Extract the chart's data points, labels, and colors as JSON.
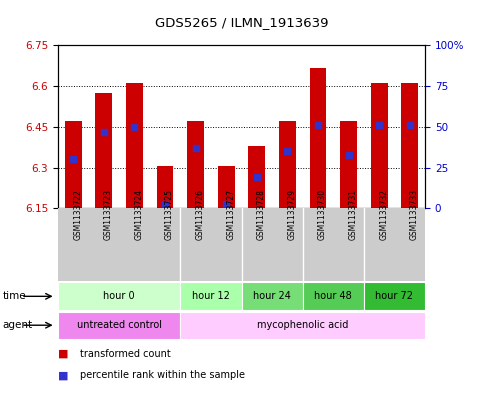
{
  "title": "GDS5265 / ILMN_1913639",
  "samples": [
    "GSM1133722",
    "GSM1133723",
    "GSM1133724",
    "GSM1133725",
    "GSM1133726",
    "GSM1133727",
    "GSM1133728",
    "GSM1133729",
    "GSM1133730",
    "GSM1133731",
    "GSM1133732",
    "GSM1133733"
  ],
  "bar_tops": [
    6.47,
    6.575,
    6.61,
    6.305,
    6.47,
    6.305,
    6.38,
    6.47,
    6.665,
    6.47,
    6.61,
    6.61
  ],
  "bar_base": 6.15,
  "blue_values": [
    6.33,
    6.43,
    6.45,
    6.165,
    6.37,
    6.165,
    6.265,
    6.36,
    6.455,
    6.345,
    6.455,
    6.455
  ],
  "ylim": [
    6.15,
    6.75
  ],
  "yticks_left": [
    6.15,
    6.3,
    6.45,
    6.6,
    6.75
  ],
  "ytick_left_labels": [
    "6.15",
    "6.3",
    "6.45",
    "6.6",
    "6.75"
  ],
  "yticks_right": [
    0,
    25,
    50,
    75,
    100
  ],
  "ytick_right_labels": [
    "0",
    "25",
    "50",
    "75",
    "100%"
  ],
  "bar_color": "#cc0000",
  "blue_color": "#3333cc",
  "background_color": "#ffffff",
  "time_groups": [
    {
      "label": "hour 0",
      "start": 0,
      "end": 4,
      "color": "#ccffcc"
    },
    {
      "label": "hour 12",
      "start": 4,
      "end": 6,
      "color": "#aaffaa"
    },
    {
      "label": "hour 24",
      "start": 6,
      "end": 8,
      "color": "#77dd77"
    },
    {
      "label": "hour 48",
      "start": 8,
      "end": 10,
      "color": "#55cc55"
    },
    {
      "label": "hour 72",
      "start": 10,
      "end": 12,
      "color": "#33bb33"
    }
  ],
  "agent_groups": [
    {
      "label": "untreated control",
      "start": 0,
      "end": 4,
      "color": "#ee88ee"
    },
    {
      "label": "mycophenolic acid",
      "start": 4,
      "end": 12,
      "color": "#ffccff"
    }
  ],
  "legend_red": "transformed count",
  "legend_blue": "percentile rank within the sample",
  "xlabel_time": "time",
  "xlabel_agent": "agent",
  "tick_label_color": "#cc0000",
  "right_axis_color": "#0000cc",
  "sample_bg_color": "#cccccc"
}
